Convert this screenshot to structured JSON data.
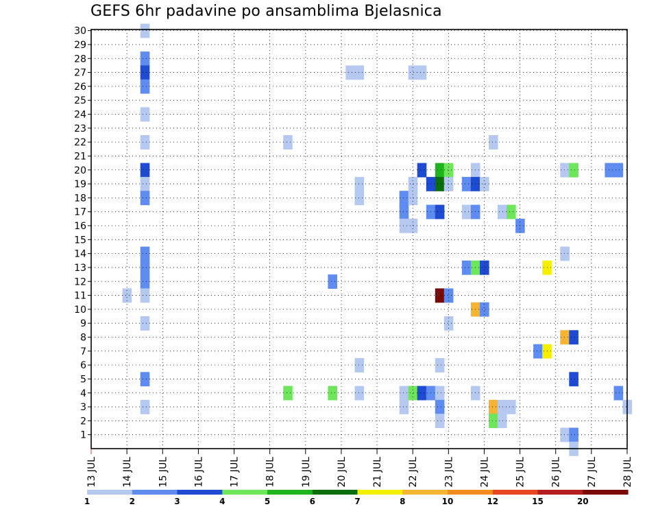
{
  "chart_data": {
    "type": "heatmap",
    "title": "GEFS 6hr padavine po ansamblima Bjelasnica",
    "xlabel": "",
    "ylabel": "",
    "x_ticks": [
      "13 JUL",
      "14 JUL",
      "15 JUL",
      "16 JUL",
      "17 JUL",
      "18 JUL",
      "19 JUL",
      "20 JUL",
      "21 JUL",
      "22 JUL",
      "23 JUL",
      "24 JUL",
      "25 JUL",
      "26 JUL",
      "27 JUL",
      "28 JUL"
    ],
    "y_ticks": [
      "1",
      "2",
      "3",
      "4",
      "5",
      "6",
      "7",
      "8",
      "9",
      "10",
      "11",
      "12",
      "13",
      "14",
      "15",
      "16",
      "17",
      "18",
      "19",
      "20",
      "21",
      "22",
      "23",
      "24",
      "25",
      "26",
      "27",
      "28",
      "29",
      "30"
    ],
    "x_range": [
      "13 JUL 00Z",
      "28 JUL 00Z"
    ],
    "x_step": "6hr",
    "y_range": [
      0,
      30
    ],
    "grid": true,
    "colorbar": {
      "position": "bottom",
      "colors": [
        "#b4c8f0",
        "#5f8cf0",
        "#1e4bd2",
        "#6ee65a",
        "#1eb41e",
        "#0a6e0a",
        "#f5f000",
        "#f5b432",
        "#f58c1e",
        "#e6461e",
        "#b41e1e",
        "#780a0a"
      ],
      "labels": [
        "1",
        "2",
        "3",
        "4",
        "5",
        "6",
        "7",
        "8",
        "10",
        "12",
        "15",
        "20"
      ]
    },
    "cells": [
      {
        "x": 6,
        "y": 30,
        "c": 0
      },
      {
        "x": 6,
        "y": 28,
        "c": 1
      },
      {
        "x": 6,
        "y": 27,
        "c": 2
      },
      {
        "x": 6,
        "y": 26,
        "c": 1
      },
      {
        "x": 6,
        "y": 24,
        "c": 0
      },
      {
        "x": 6,
        "y": 22,
        "c": 0
      },
      {
        "x": 6,
        "y": 20,
        "c": 2
      },
      {
        "x": 6,
        "y": 19,
        "c": 0
      },
      {
        "x": 6,
        "y": 18,
        "c": 1
      },
      {
        "x": 6,
        "y": 14,
        "c": 1
      },
      {
        "x": 6,
        "y": 13,
        "c": 1
      },
      {
        "x": 6,
        "y": 12,
        "c": 1
      },
      {
        "x": 6,
        "y": 11,
        "c": 0
      },
      {
        "x": 6,
        "y": 9,
        "c": 0
      },
      {
        "x": 6,
        "y": 5,
        "c": 1
      },
      {
        "x": 6,
        "y": 3,
        "c": 0
      },
      {
        "x": 4,
        "y": 11,
        "c": 0
      },
      {
        "x": 22,
        "y": 22,
        "c": 0
      },
      {
        "x": 22,
        "y": 4,
        "c": 3
      },
      {
        "x": 27,
        "y": 12,
        "c": 1
      },
      {
        "x": 27,
        "y": 4,
        "c": 3
      },
      {
        "x": 29,
        "y": 27,
        "c": 0
      },
      {
        "x": 30,
        "y": 27,
        "c": 0
      },
      {
        "x": 30,
        "y": 19,
        "c": 0
      },
      {
        "x": 30,
        "y": 18,
        "c": 0
      },
      {
        "x": 30,
        "y": 6,
        "c": 0
      },
      {
        "x": 30,
        "y": 4,
        "c": 0
      },
      {
        "x": 35,
        "y": 18,
        "c": 1
      },
      {
        "x": 35,
        "y": 17,
        "c": 1
      },
      {
        "x": 35,
        "y": 16,
        "c": 0
      },
      {
        "x": 35,
        "y": 4,
        "c": 0
      },
      {
        "x": 35,
        "y": 3,
        "c": 0
      },
      {
        "x": 36,
        "y": 27,
        "c": 0
      },
      {
        "x": 36,
        "y": 19,
        "c": 0
      },
      {
        "x": 36,
        "y": 18,
        "c": 0
      },
      {
        "x": 36,
        "y": 16,
        "c": 0
      },
      {
        "x": 36,
        "y": 4,
        "c": 3
      },
      {
        "x": 37,
        "y": 27,
        "c": 0
      },
      {
        "x": 37,
        "y": 20,
        "c": 2
      },
      {
        "x": 37,
        "y": 4,
        "c": 2
      },
      {
        "x": 38,
        "y": 19,
        "c": 2
      },
      {
        "x": 38,
        "y": 17,
        "c": 1
      },
      {
        "x": 38,
        "y": 4,
        "c": 1
      },
      {
        "x": 39,
        "y": 20,
        "c": 4
      },
      {
        "x": 39,
        "y": 19,
        "c": 5
      },
      {
        "x": 39,
        "y": 17,
        "c": 2
      },
      {
        "x": 39,
        "y": 11,
        "c": 11
      },
      {
        "x": 39,
        "y": 6,
        "c": 0
      },
      {
        "x": 39,
        "y": 4,
        "c": 0
      },
      {
        "x": 39,
        "y": 3,
        "c": 1
      },
      {
        "x": 39,
        "y": 2,
        "c": 0
      },
      {
        "x": 40,
        "y": 20,
        "c": 3
      },
      {
        "x": 40,
        "y": 19,
        "c": 0
      },
      {
        "x": 40,
        "y": 11,
        "c": 1
      },
      {
        "x": 40,
        "y": 9,
        "c": 0
      },
      {
        "x": 42,
        "y": 19,
        "c": 1
      },
      {
        "x": 42,
        "y": 17,
        "c": 0
      },
      {
        "x": 42,
        "y": 13,
        "c": 1
      },
      {
        "x": 43,
        "y": 20,
        "c": 0
      },
      {
        "x": 43,
        "y": 19,
        "c": 2
      },
      {
        "x": 43,
        "y": 17,
        "c": 1
      },
      {
        "x": 43,
        "y": 13,
        "c": 3
      },
      {
        "x": 43,
        "y": 10,
        "c": 7
      },
      {
        "x": 43,
        "y": 4,
        "c": 0
      },
      {
        "x": 44,
        "y": 19,
        "c": 0
      },
      {
        "x": 44,
        "y": 13,
        "c": 2
      },
      {
        "x": 44,
        "y": 10,
        "c": 1
      },
      {
        "x": 45,
        "y": 22,
        "c": 0
      },
      {
        "x": 45,
        "y": 3,
        "c": 7
      },
      {
        "x": 45,
        "y": 2,
        "c": 3
      },
      {
        "x": 46,
        "y": 17,
        "c": 0
      },
      {
        "x": 46,
        "y": 3,
        "c": 0
      },
      {
        "x": 46,
        "y": 2,
        "c": 0
      },
      {
        "x": 47,
        "y": 17,
        "c": 3
      },
      {
        "x": 47,
        "y": 3,
        "c": 0
      },
      {
        "x": 48,
        "y": 16,
        "c": 1
      },
      {
        "x": 50,
        "y": 7,
        "c": 1
      },
      {
        "x": 51,
        "y": 13,
        "c": 6
      },
      {
        "x": 51,
        "y": 7,
        "c": 6
      },
      {
        "x": 53,
        "y": 20,
        "c": 0
      },
      {
        "x": 53,
        "y": 14,
        "c": 0
      },
      {
        "x": 53,
        "y": 8,
        "c": 7
      },
      {
        "x": 53,
        "y": 1,
        "c": 0
      },
      {
        "x": 54,
        "y": 20,
        "c": 3
      },
      {
        "x": 54,
        "y": 8,
        "c": 2
      },
      {
        "x": 54,
        "y": 5,
        "c": 2
      },
      {
        "x": 54,
        "y": 1,
        "c": 1
      },
      {
        "x": 54,
        "y": 0,
        "c": 0
      },
      {
        "x": 58,
        "y": 20,
        "c": 1
      },
      {
        "x": 59,
        "y": 20,
        "c": 1
      },
      {
        "x": 59,
        "y": 4,
        "c": 1
      },
      {
        "x": 60,
        "y": 3,
        "c": 0
      }
    ]
  }
}
